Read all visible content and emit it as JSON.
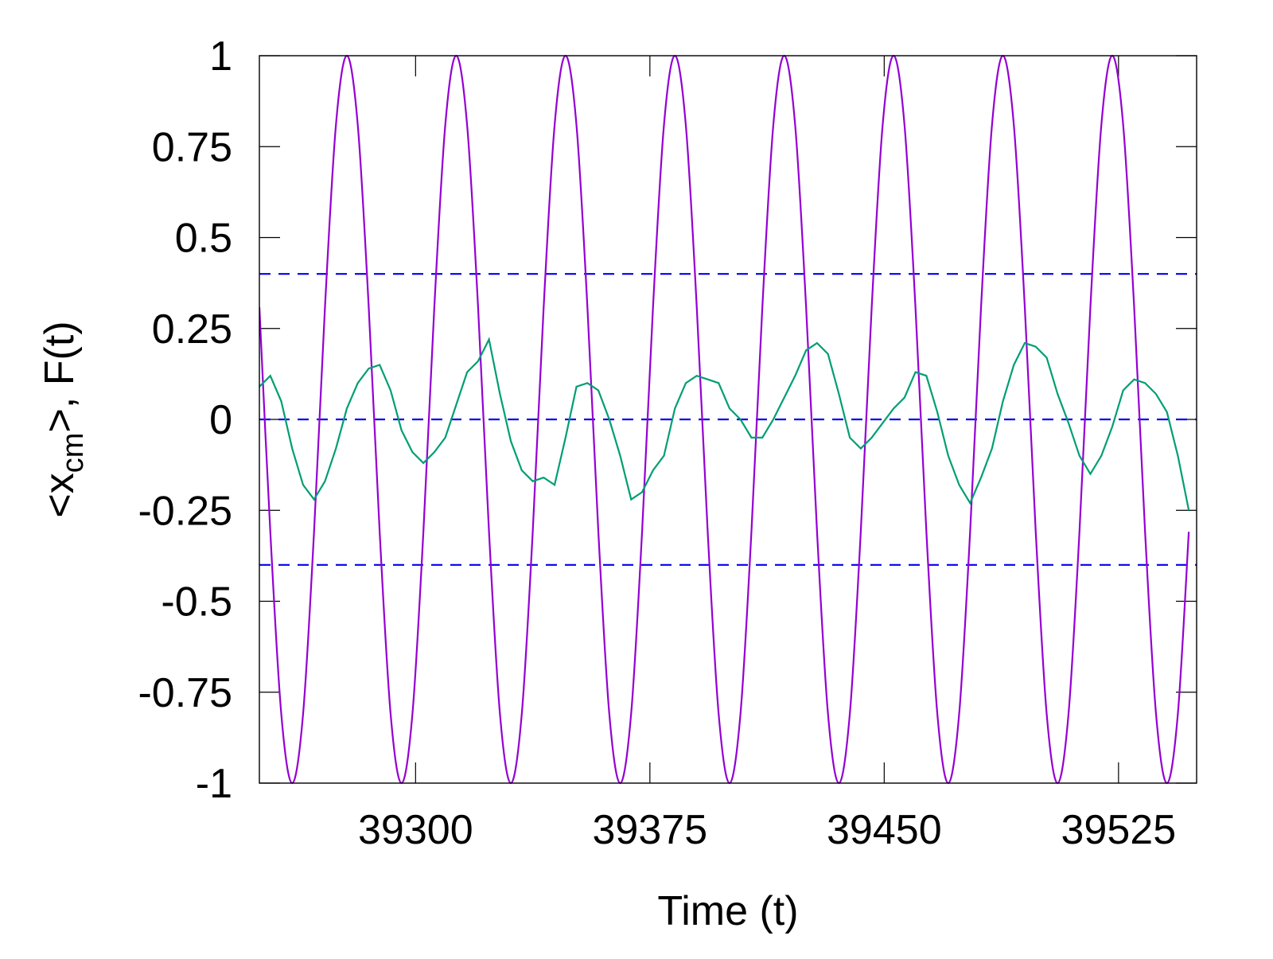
{
  "chart_data": {
    "type": "line",
    "xlabel": "Time (t)",
    "ylabel": [
      "<x",
      "cm",
      ">, F(t)"
    ],
    "xlim": [
      39250,
      39550
    ],
    "ylim": [
      -1,
      1
    ],
    "xticks": [
      39300,
      39375,
      39450,
      39525
    ],
    "yticks": [
      1,
      0.75,
      0.5,
      0.25,
      0,
      -0.25,
      -0.5,
      -0.75,
      -1
    ],
    "hlines": [
      0.4,
      0,
      -0.4
    ],
    "hline_color": "#0000ee",
    "x": [
      39250,
      39253.5,
      39257,
      39260.5,
      39264,
      39267.5,
      39271,
      39274.5,
      39278,
      39281.5,
      39285,
      39288.5,
      39292,
      39295.5,
      39299,
      39302.5,
      39306,
      39309.5,
      39313,
      39316.5,
      39320,
      39323.5,
      39327,
      39330.5,
      39334,
      39337.5,
      39341,
      39344.5,
      39348,
      39351.5,
      39355,
      39358.5,
      39362,
      39365.5,
      39369,
      39372.5,
      39376,
      39379.5,
      39383,
      39386.5,
      39390,
      39393.5,
      39397,
      39400.5,
      39404,
      39407.5,
      39411,
      39414.5,
      39418,
      39421.5,
      39425,
      39428.5,
      39432,
      39435.5,
      39439,
      39442.5,
      39446,
      39449.5,
      39453,
      39456.5,
      39460,
      39463.5,
      39467,
      39470.5,
      39474,
      39477.5,
      39481,
      39484.5,
      39488,
      39491.5,
      39495,
      39498.5,
      39502,
      39505.5,
      39509,
      39512.5,
      39516,
      39519.5,
      39523,
      39526.5,
      39530,
      39533.5,
      39537,
      39540.5,
      39544,
      39547.5
    ],
    "series": [
      {
        "color": "#9400d3",
        "smooth": true,
        "values": [
          0.309,
          -0.309,
          -0.809,
          -1,
          -0.809,
          -0.309,
          0.309,
          0.809,
          1,
          0.809,
          0.309,
          -0.309,
          -0.809,
          -1,
          -0.809,
          -0.309,
          0.309,
          0.809,
          1,
          0.809,
          0.309,
          -0.309,
          -0.809,
          -1,
          -0.809,
          -0.309,
          0.309,
          0.809,
          1,
          0.809,
          0.309,
          -0.309,
          -0.809,
          -1,
          -0.809,
          -0.309,
          0.309,
          0.809,
          1,
          0.809,
          0.309,
          -0.309,
          -0.809,
          -1,
          -0.809,
          -0.309,
          0.309,
          0.809,
          1,
          0.809,
          0.309,
          -0.309,
          -0.809,
          -1,
          -0.809,
          -0.309,
          0.309,
          0.809,
          1,
          0.809,
          0.309,
          -0.309,
          -0.809,
          -1,
          -0.809,
          -0.309,
          0.309,
          0.809,
          1,
          0.809,
          0.309,
          -0.309,
          -0.809,
          -1,
          -0.809,
          -0.309,
          0.309,
          0.809,
          1,
          0.809,
          0.309,
          -0.309,
          -0.809,
          -1,
          -0.809,
          -0.309
        ]
      },
      {
        "color": "#009e73",
        "smooth": false,
        "values": [
          0.09,
          0.12,
          0.05,
          -0.08,
          -0.18,
          -0.22,
          -0.17,
          -0.08,
          0.03,
          0.1,
          0.14,
          0.15,
          0.08,
          -0.03,
          -0.09,
          -0.12,
          -0.09,
          -0.05,
          0.04,
          0.13,
          0.16,
          0.22,
          0.07,
          -0.06,
          -0.14,
          -0.17,
          -0.16,
          -0.18,
          -0.05,
          0.09,
          0.1,
          0.08,
          0,
          -0.1,
          -0.22,
          -0.2,
          -0.14,
          -0.1,
          0.03,
          0.1,
          0.12,
          0.11,
          0.1,
          0.03,
          0,
          -0.05,
          -0.05,
          0,
          0.06,
          0.12,
          0.19,
          0.21,
          0.18,
          0.07,
          -0.05,
          -0.08,
          -0.05,
          -0.01,
          0.03,
          0.06,
          0.13,
          0.12,
          0.02,
          -0.1,
          -0.18,
          -0.23,
          -0.16,
          -0.08,
          0.05,
          0.15,
          0.21,
          0.2,
          0.17,
          0.07,
          -0.01,
          -0.1,
          -0.15,
          -0.1,
          -0.02,
          0.08,
          0.11,
          0.1,
          0.07,
          0.02,
          -0.1,
          -0.25
        ]
      }
    ]
  }
}
